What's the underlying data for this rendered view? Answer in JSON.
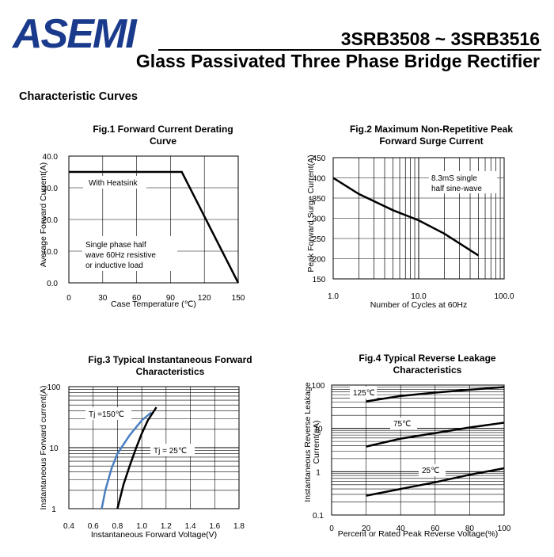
{
  "header": {
    "logo_text": "ASEMI",
    "part_range": "3SRB3508 ~ 3SRB3516",
    "subtitle": "Glass Passivated Three Phase Bridge Rectifier",
    "brand_color": "#1a3a8c"
  },
  "section_title": "Characteristic Curves",
  "chart_data": [
    {
      "id": "fig1",
      "type": "line",
      "title": "Fig.1 Forward Current Derating Curve",
      "title_lines": [
        "Fig.1 Forward Current Derating",
        "Curve"
      ],
      "xlabel": "Case Temperature (℃)",
      "ylabel": "Average Forward Current(A)",
      "xlim": [
        0,
        150
      ],
      "ylim": [
        0,
        40
      ],
      "xticks": [
        "0",
        "30",
        "60",
        "90",
        "120",
        "150"
      ],
      "yticks": [
        "0.0",
        "10.0",
        "20.0",
        "30.0",
        "40.0"
      ],
      "series": [
        {
          "name": "With Heatsink",
          "x": [
            0,
            100,
            150
          ],
          "y": [
            35,
            35,
            0
          ]
        }
      ],
      "annotations": [
        "With Heatsink",
        "Single phase half",
        "wave 60Hz resistive",
        "or inductive load"
      ]
    },
    {
      "id": "fig2",
      "type": "line",
      "title": "Fig.2 Maximum Non-Repetitive Peak Forward Surge Current",
      "title_lines": [
        "Fig.2 Maximum Non-Repetitive Peak",
        "Forward Surge Current"
      ],
      "xlabel": "Number of Cycles at 60Hz",
      "ylabel": "Peak Forward Surge Current(A)",
      "xscale": "log",
      "xlim": [
        1,
        100
      ],
      "ylim": [
        150,
        450
      ],
      "xticks": [
        "1.0",
        "10.0",
        "100.0"
      ],
      "yticks": [
        "150",
        "200",
        "250",
        "300",
        "350",
        "400",
        "450"
      ],
      "series": [
        {
          "name": "Surge",
          "x": [
            1,
            2,
            5,
            10,
            20,
            50
          ],
          "y": [
            400,
            360,
            320,
            295,
            262,
            208
          ]
        }
      ],
      "annotations": [
        "8.3mS single",
        "half sine-wave"
      ]
    },
    {
      "id": "fig3",
      "type": "line",
      "title": "Fig.3 Typical Instantaneous Forward Characteristics",
      "title_lines": [
        "Fig.3 Typical Instantaneous Forward",
        "Characteristics"
      ],
      "xlabel": "Instantaneous Forward Voltage(V)",
      "ylabel": "Instantaneous  Forward current(A)",
      "yscale": "log",
      "xlim": [
        0.4,
        1.8
      ],
      "ylim": [
        1,
        100
      ],
      "xticks": [
        "0.4",
        "0.6",
        "0.8",
        "1.0",
        "1.2",
        "1.4",
        "1.6",
        "1.8"
      ],
      "yticks": [
        "1",
        "10",
        "100"
      ],
      "series": [
        {
          "name": "Tj =150℃",
          "color": "#4a7fc1",
          "x": [
            0.67,
            0.7,
            0.75,
            0.8,
            0.9,
            1.0,
            1.08
          ],
          "y": [
            1,
            2,
            4.5,
            8,
            16,
            28,
            38
          ]
        },
        {
          "name": "Tj = 25℃",
          "color": "#000000",
          "x": [
            0.8,
            0.85,
            0.9,
            0.95,
            1.0,
            1.05,
            1.12
          ],
          "y": [
            1,
            2.5,
            5,
            9.5,
            17,
            28,
            46
          ]
        }
      ]
    },
    {
      "id": "fig4",
      "type": "line",
      "title": "Fig.4 Typical Reverse Leakage Characteristics",
      "title_lines": [
        "Fig.4 Typical Reverse Leakage",
        "Characteristics"
      ],
      "xlabel": "Percent or Rated Peak Reverse Voltage(%)",
      "ylabel": "Instantaneous  Reverse  Leakage Current(µA)",
      "ylabel_lines": [
        "Instantaneous  Reverse  Leakage",
        "Current(µA)"
      ],
      "yscale": "log",
      "xlim": [
        0,
        100
      ],
      "ylim": [
        0.1,
        100
      ],
      "xticks": [
        "0",
        "20",
        "40",
        "60",
        "80",
        "100"
      ],
      "yticks": [
        "0.1",
        "1",
        "10",
        "100"
      ],
      "series": [
        {
          "name": "125℃",
          "x": [
            20,
            40,
            60,
            80,
            100
          ],
          "y": [
            42,
            56,
            67,
            78,
            90
          ]
        },
        {
          "name": "75℃",
          "x": [
            20,
            40,
            60,
            80,
            100
          ],
          "y": [
            3.8,
            5.8,
            7.8,
            10.5,
            13.5
          ]
        },
        {
          "name": "25℃",
          "x": [
            20,
            40,
            60,
            80,
            100
          ],
          "y": [
            0.28,
            0.4,
            0.57,
            0.85,
            1.2
          ]
        }
      ]
    }
  ]
}
